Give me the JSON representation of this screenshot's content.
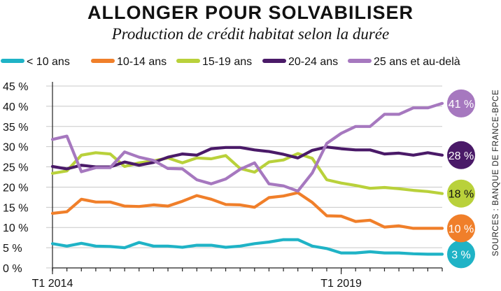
{
  "chart_data": {
    "type": "line",
    "title": "ALLONGER POUR SOLVABILISER",
    "subtitle": "Production de crédit habitat selon la durée",
    "source": "SOURCES : BANQUE DE FRANCE-BPCE",
    "ylim": [
      0,
      45
    ],
    "y_ticks": [
      {
        "value": 0,
        "label": "0 %"
      },
      {
        "value": 5,
        "label": "5 %"
      },
      {
        "value": 10,
        "label": "10 %"
      },
      {
        "value": 15,
        "label": "15 %"
      },
      {
        "value": 20,
        "label": "20 %"
      },
      {
        "value": 25,
        "label": "25 %"
      },
      {
        "value": 30,
        "label": "30 %"
      },
      {
        "value": 35,
        "label": "35 %"
      },
      {
        "value": 40,
        "label": "40 %"
      },
      {
        "value": 45,
        "label": "45 %"
      }
    ],
    "x_ticks": [
      {
        "index": 0,
        "label": "T1 2014"
      },
      {
        "index": 20,
        "label": "T1 2019"
      }
    ],
    "grid": true,
    "legend_position": "top",
    "series": [
      {
        "name": "< 10 ans",
        "color": "#1fb3c6",
        "end_label": "3 %",
        "end_label_color": "#ffffff",
        "values": [
          6.0,
          5.4,
          6.1,
          5.4,
          5.3,
          5.0,
          6.3,
          5.4,
          5.4,
          5.1,
          5.6,
          5.6,
          5.1,
          5.4,
          6.0,
          6.4,
          7.0,
          7.0,
          5.4,
          4.8,
          3.7,
          3.7,
          4.0,
          3.7,
          3.7,
          3.5,
          3.4,
          3.4
        ]
      },
      {
        "name": "10-14 ans",
        "color": "#f07f2a",
        "end_label": "10 %",
        "end_label_color": "#ffffff",
        "values": [
          13.5,
          13.9,
          17.0,
          16.3,
          16.3,
          15.3,
          15.2,
          15.6,
          15.3,
          16.5,
          17.9,
          17.0,
          15.7,
          15.6,
          15.0,
          17.4,
          17.8,
          18.6,
          16.2,
          12.9,
          12.8,
          11.5,
          11.8,
          10.1,
          10.4,
          9.8,
          9.8,
          9.8
        ]
      },
      {
        "name": "15-19 ans",
        "color": "#b9d13b",
        "end_label": "18 %",
        "end_label_color": "#111111",
        "values": [
          23.4,
          24.0,
          27.9,
          28.5,
          28.2,
          25.1,
          26.0,
          26.5,
          27.2,
          26.0,
          27.2,
          27.0,
          27.8,
          24.6,
          23.7,
          26.2,
          26.7,
          28.3,
          27.1,
          21.8,
          21.0,
          20.4,
          19.7,
          19.9,
          19.6,
          19.2,
          18.9,
          18.4
        ]
      },
      {
        "name": "20-24 ans",
        "color": "#4a1a68",
        "end_label": "28 %",
        "end_label_color": "#ffffff",
        "values": [
          25.1,
          24.5,
          25.4,
          25.0,
          25.0,
          26.2,
          25.4,
          26.1,
          27.4,
          28.2,
          27.9,
          29.5,
          29.8,
          29.8,
          29.2,
          28.8,
          28.1,
          27.2,
          29.1,
          29.9,
          29.5,
          29.2,
          29.2,
          28.2,
          28.4,
          27.9,
          28.5,
          27.9
        ]
      },
      {
        "name": "25 ans et au-delà",
        "color": "#a678bf",
        "end_label": "41 %",
        "end_label_color": "#ffffff",
        "values": [
          31.8,
          32.6,
          23.8,
          24.8,
          24.8,
          28.7,
          27.4,
          26.6,
          24.6,
          24.5,
          21.8,
          20.8,
          22.0,
          24.4,
          26.0,
          20.8,
          20.3,
          19.0,
          23.5,
          30.8,
          33.3,
          35.0,
          35.0,
          38.0,
          38.0,
          39.6,
          39.6,
          40.7
        ]
      }
    ]
  }
}
